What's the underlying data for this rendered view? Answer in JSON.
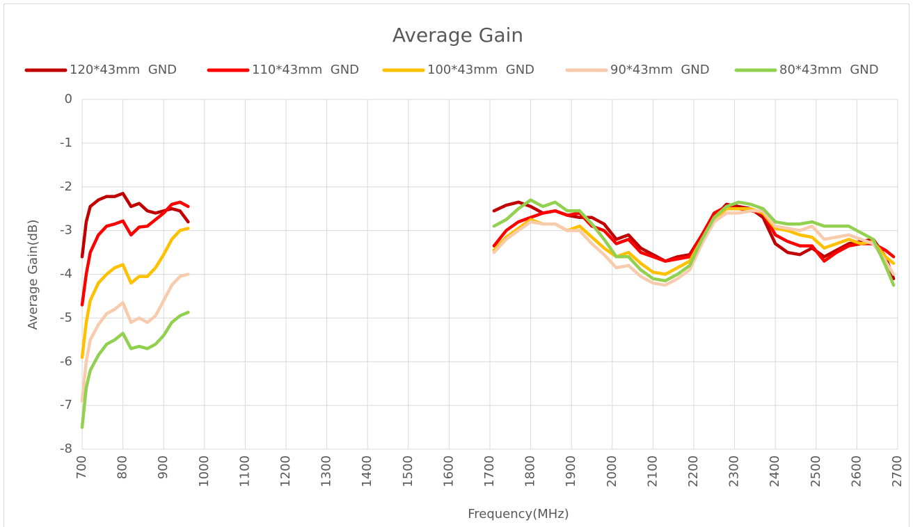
{
  "chart_data": {
    "type": "line",
    "title": "Average Gain",
    "xlabel": "Frequency(MHz)",
    "ylabel": "Average Gain(dB)",
    "x": [
      700,
      710,
      720,
      740,
      760,
      780,
      800,
      820,
      840,
      860,
      880,
      900,
      920,
      940,
      960,
      1000,
      1710,
      1740,
      1770,
      1800,
      1830,
      1860,
      1890,
      1920,
      1950,
      1980,
      2010,
      2040,
      2070,
      2100,
      2130,
      2160,
      2190,
      2220,
      2250,
      2280,
      2310,
      2340,
      2370,
      2400,
      2430,
      2460,
      2490,
      2520,
      2550,
      2580,
      2610,
      2640,
      2670,
      2690
    ],
    "series": [
      {
        "name": "120*43mm  GND",
        "color": "#c00000",
        "values": [
          -3.6,
          -2.8,
          -2.45,
          -2.3,
          -2.22,
          -2.22,
          -2.15,
          -2.45,
          -2.38,
          -2.55,
          -2.6,
          -2.55,
          -2.5,
          -2.55,
          -2.8,
          null,
          -2.55,
          -2.42,
          -2.35,
          -2.45,
          -2.6,
          -2.55,
          -2.65,
          -2.7,
          -2.7,
          -2.85,
          -3.2,
          -3.1,
          -3.4,
          -3.55,
          -3.7,
          -3.6,
          -3.55,
          -3.1,
          -2.7,
          -2.4,
          -2.45,
          -2.5,
          -2.7,
          -3.3,
          -3.5,
          -3.55,
          -3.4,
          -3.6,
          -3.45,
          -3.3,
          -3.25,
          -3.2,
          -3.6,
          -4.1
        ]
      },
      {
        "name": "110*43mm  GND",
        "color": "#ff0000",
        "values": [
          -4.7,
          -4.0,
          -3.5,
          -3.1,
          -2.9,
          -2.85,
          -2.78,
          -3.1,
          -2.92,
          -2.9,
          -2.75,
          -2.6,
          -2.4,
          -2.35,
          -2.45,
          null,
          -3.35,
          -3.0,
          -2.8,
          -2.7,
          -2.6,
          -2.55,
          -2.65,
          -2.6,
          -2.9,
          -3.0,
          -3.3,
          -3.2,
          -3.5,
          -3.6,
          -3.7,
          -3.65,
          -3.6,
          -3.1,
          -2.6,
          -2.45,
          -2.5,
          -2.55,
          -2.6,
          -3.1,
          -3.25,
          -3.35,
          -3.35,
          -3.7,
          -3.5,
          -3.35,
          -3.3,
          -3.3,
          -3.45,
          -3.6
        ]
      },
      {
        "name": "100*43mm  GND",
        "color": "#ffc000",
        "values": [
          -5.9,
          -5.1,
          -4.6,
          -4.2,
          -4.0,
          -3.85,
          -3.78,
          -4.2,
          -4.05,
          -4.05,
          -3.85,
          -3.55,
          -3.2,
          -3.0,
          -2.95,
          null,
          -3.45,
          -3.15,
          -2.95,
          -2.75,
          -2.85,
          -2.85,
          -3.0,
          -2.9,
          -3.15,
          -3.4,
          -3.6,
          -3.5,
          -3.75,
          -3.95,
          -4.0,
          -3.85,
          -3.7,
          -3.2,
          -2.75,
          -2.5,
          -2.5,
          -2.5,
          -2.6,
          -2.95,
          -3.0,
          -3.1,
          -3.15,
          -3.4,
          -3.3,
          -3.2,
          -3.3,
          -3.25,
          -3.6,
          -3.75
        ]
      },
      {
        "name": "90*43mm  GND",
        "color": "#f8cbad",
        "values": [
          -6.9,
          -6.0,
          -5.5,
          -5.15,
          -4.9,
          -4.8,
          -4.65,
          -5.1,
          -5.0,
          -5.1,
          -4.95,
          -4.6,
          -4.25,
          -4.05,
          -4.0,
          null,
          -3.5,
          -3.2,
          -3.0,
          -2.8,
          -2.85,
          -2.85,
          -3.0,
          -3.0,
          -3.3,
          -3.55,
          -3.85,
          -3.8,
          -4.05,
          -4.2,
          -4.25,
          -4.1,
          -3.9,
          -3.3,
          -2.8,
          -2.6,
          -2.6,
          -2.55,
          -2.55,
          -2.9,
          -2.95,
          -3.0,
          -2.9,
          -3.2,
          -3.15,
          -3.1,
          -3.2,
          -3.3,
          -3.7,
          -4.0
        ]
      },
      {
        "name": "80*43mm  GND",
        "color": "#92d050",
        "values": [
          -7.5,
          -6.6,
          -6.2,
          -5.85,
          -5.6,
          -5.5,
          -5.35,
          -5.7,
          -5.65,
          -5.7,
          -5.6,
          -5.4,
          -5.1,
          -4.95,
          -4.87,
          null,
          -2.9,
          -2.75,
          -2.5,
          -2.3,
          -2.45,
          -2.35,
          -2.55,
          -2.55,
          -2.85,
          -3.2,
          -3.6,
          -3.6,
          -3.9,
          -4.1,
          -4.15,
          -4.0,
          -3.8,
          -3.2,
          -2.7,
          -2.45,
          -2.35,
          -2.4,
          -2.5,
          -2.8,
          -2.85,
          -2.85,
          -2.8,
          -2.9,
          -2.9,
          -2.9,
          -3.05,
          -3.2,
          -3.8,
          -4.25
        ]
      }
    ],
    "xlim": [
      700,
      2700
    ],
    "xticks": [
      700,
      800,
      900,
      1000,
      1100,
      1200,
      1300,
      1400,
      1500,
      1600,
      1700,
      1800,
      1900,
      2000,
      2100,
      2200,
      2300,
      2400,
      2500,
      2600,
      2700
    ],
    "ylim": [
      -8,
      0
    ],
    "yticks": [
      0,
      -1,
      -2,
      -3,
      -4,
      -5,
      -6,
      -7,
      -8
    ],
    "grid": true,
    "legend": "top"
  }
}
